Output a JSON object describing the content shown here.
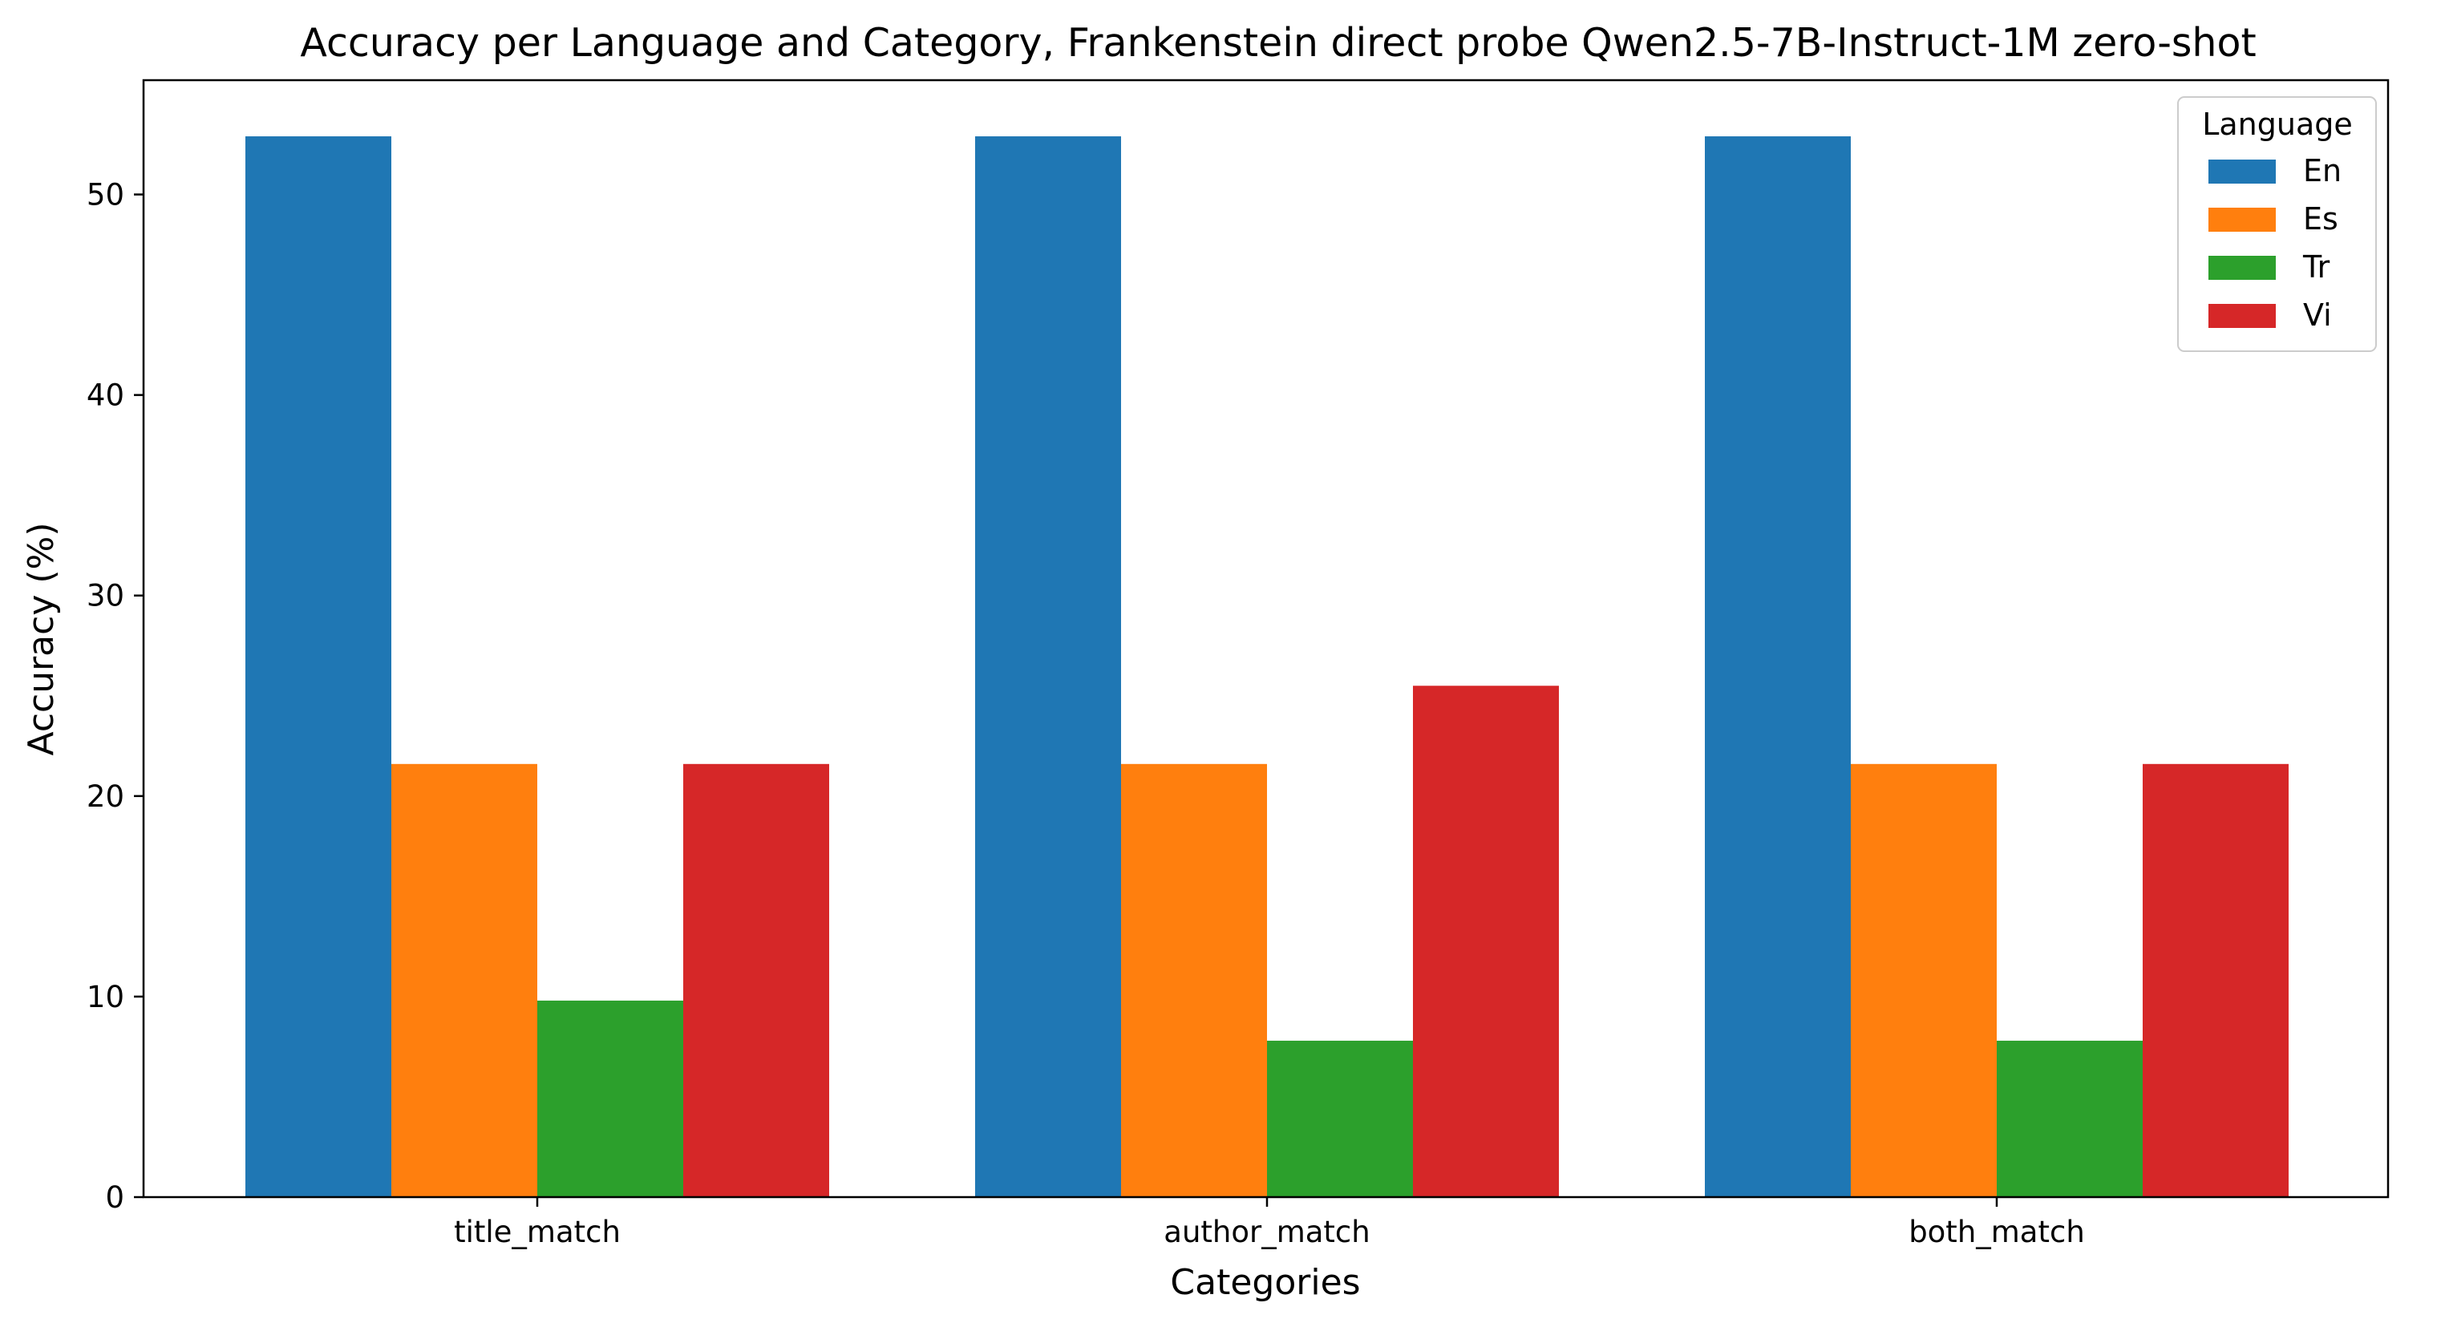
{
  "chart_data": {
    "type": "bar",
    "title": "Accuracy per Language and Category, Frankenstein direct probe Qwen2.5-7B-Instruct-1M zero-shot",
    "xlabel": "Categories",
    "ylabel": "Accuracy (%)",
    "categories": [
      "title_match",
      "author_match",
      "both_match"
    ],
    "ylim": [
      0,
      55.7
    ],
    "yticks": [
      0,
      10,
      20,
      30,
      40,
      50
    ],
    "grid": false,
    "legend": {
      "title": "Language",
      "position": "top-right"
    },
    "series": [
      {
        "name": "En",
        "color": "#1f77b4",
        "values": [
          52.9,
          52.9,
          52.9
        ]
      },
      {
        "name": "Es",
        "color": "#ff7f0e",
        "values": [
          21.6,
          21.6,
          21.6
        ]
      },
      {
        "name": "Tr",
        "color": "#2ca02c",
        "values": [
          9.8,
          7.8,
          7.8
        ]
      },
      {
        "name": "Vi",
        "color": "#d62728",
        "values": [
          21.6,
          25.5,
          21.6
        ]
      }
    ]
  }
}
